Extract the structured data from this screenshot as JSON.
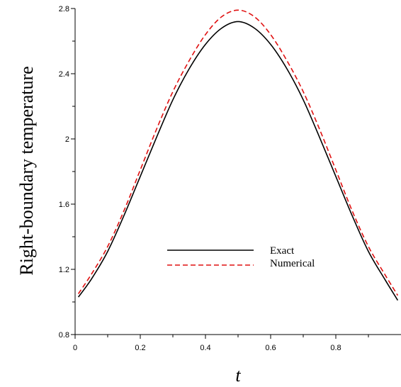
{
  "chart_data": {
    "type": "line",
    "title": "",
    "xlabel": "t",
    "ylabel": "Right-boundary temperature",
    "xlim": [
      0,
      1
    ],
    "ylim": [
      0.8,
      2.8
    ],
    "xticks": [
      "0",
      "0.2",
      "0.4",
      "0.6",
      "0.8"
    ],
    "yticks": [
      "0.8",
      "1.2",
      "1.6",
      "2",
      "2.4",
      "2.8"
    ],
    "xtick_values": [
      0,
      0.2,
      0.4,
      0.6,
      0.8
    ],
    "ytick_values": [
      0.8,
      1.2,
      1.6,
      2.0,
      2.4,
      2.8
    ],
    "grid": false,
    "legend_position": "center",
    "series": [
      {
        "name": "Exact",
        "color": "#000000",
        "style": "solid",
        "x": [
          0.01,
          0.05,
          0.1,
          0.15,
          0.2,
          0.25,
          0.3,
          0.35,
          0.4,
          0.45,
          0.5,
          0.55,
          0.6,
          0.65,
          0.7,
          0.75,
          0.8,
          0.85,
          0.9,
          0.95,
          0.99
        ],
        "y": [
          1.03,
          1.14,
          1.31,
          1.53,
          1.77,
          2.01,
          2.24,
          2.43,
          2.58,
          2.68,
          2.72,
          2.68,
          2.58,
          2.43,
          2.24,
          2.01,
          1.77,
          1.53,
          1.31,
          1.14,
          1.01
        ]
      },
      {
        "name": "Numerical",
        "color": "#e01010",
        "style": "dashed",
        "x": [
          0.01,
          0.05,
          0.1,
          0.15,
          0.2,
          0.25,
          0.3,
          0.35,
          0.4,
          0.45,
          0.5,
          0.55,
          0.6,
          0.65,
          0.7,
          0.75,
          0.8,
          0.85,
          0.9,
          0.95,
          0.99
        ],
        "y": [
          1.05,
          1.17,
          1.34,
          1.56,
          1.81,
          2.06,
          2.29,
          2.48,
          2.64,
          2.75,
          2.79,
          2.75,
          2.64,
          2.48,
          2.29,
          2.06,
          1.81,
          1.56,
          1.34,
          1.17,
          1.04
        ]
      }
    ]
  }
}
